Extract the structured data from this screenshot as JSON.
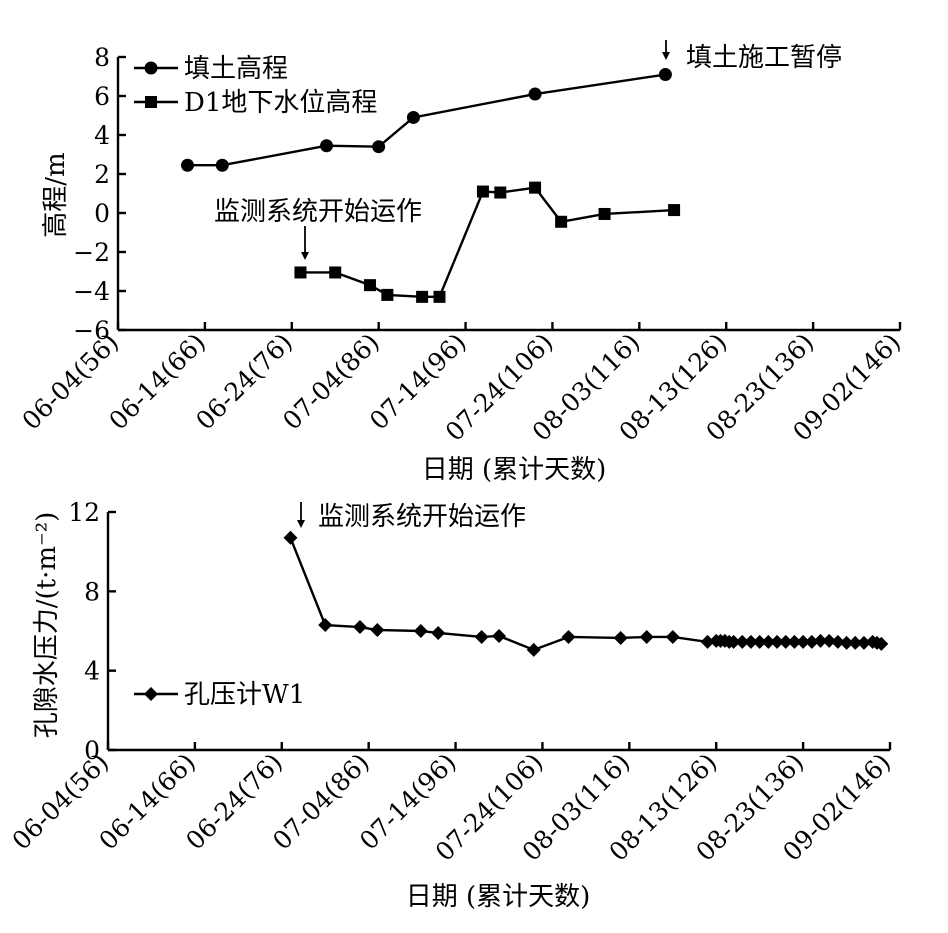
{
  "chart_data": [
    {
      "type": "line",
      "x_tick_labels": [
        "06-04(56)",
        "06-14(66)",
        "06-24(76)",
        "07-04(86)",
        "07-14(96)",
        "07-24(106)",
        "08-03(116)",
        "08-13(126)",
        "08-23(136)",
        "09-02(146)"
      ],
      "x_ticks": [
        56,
        66,
        76,
        86,
        96,
        106,
        116,
        126,
        136,
        146
      ],
      "xlim": [
        56,
        146
      ],
      "xlabel": "日期 (累计天数)",
      "ylabel": "高程/m",
      "ylim": [
        -6,
        8
      ],
      "y_ticks": [
        -6,
        -4,
        -2,
        0,
        2,
        4,
        6,
        8
      ],
      "y_tick_labels": [
        "−6",
        "−4",
        "−2",
        "0",
        "2",
        "4",
        "6",
        "8"
      ],
      "legend_position": "top-left",
      "series": [
        {
          "name": "填土高程",
          "marker": "circle",
          "x": [
            64,
            68,
            80,
            86,
            90,
            104,
            119
          ],
          "y": [
            2.45,
            2.45,
            3.45,
            3.4,
            4.9,
            6.1,
            7.1
          ]
        },
        {
          "name": "D1地下水位高程",
          "marker": "square",
          "x": [
            77,
            81,
            85,
            87,
            91,
            93,
            98,
            100,
            104,
            107,
            112,
            120
          ],
          "y": [
            -3.05,
            -3.05,
            -3.7,
            -4.2,
            -4.3,
            -4.3,
            1.1,
            1.05,
            1.3,
            -0.45,
            -0.05,
            0.15
          ]
        }
      ],
      "annotations": [
        {
          "text": "填土施工暂停",
          "x": 119,
          "arrow": true
        },
        {
          "text": "监测系统开始运作",
          "x": 77,
          "arrow": true
        }
      ]
    },
    {
      "type": "line",
      "x_tick_labels": [
        "06-04(56)",
        "06-14(66)",
        "06-24(76)",
        "07-04(86)",
        "07-14(96)",
        "07-24(106)",
        "08-03(116)",
        "08-13(126)",
        "08-23(136)",
        "09-02(146)"
      ],
      "x_ticks": [
        56,
        66,
        76,
        86,
        96,
        106,
        116,
        126,
        136,
        146
      ],
      "xlim": [
        56,
        146
      ],
      "xlabel": "日期 (累计天数)",
      "ylabel": "孔隙水压力/(t·m⁻²)",
      "ylim": [
        0,
        12
      ],
      "y_ticks": [
        0,
        4,
        8,
        12
      ],
      "y_tick_labels": [
        "0",
        "4",
        "8",
        "12"
      ],
      "legend_position": "center-left",
      "series": [
        {
          "name": "孔压计W1",
          "marker": "diamond",
          "x": [
            77,
            81,
            85,
            87,
            92,
            94,
            99,
            101,
            105,
            109,
            115,
            118,
            121,
            125,
            126,
            126.5,
            127,
            127.5,
            128,
            129,
            130,
            131,
            132,
            133,
            134,
            135,
            136,
            137,
            138,
            139,
            140,
            141,
            142,
            143,
            144,
            144.5,
            145
          ],
          "y": [
            10.7,
            6.3,
            6.2,
            6.05,
            6.0,
            5.9,
            5.7,
            5.75,
            5.05,
            5.7,
            5.65,
            5.7,
            5.7,
            5.45,
            5.5,
            5.5,
            5.5,
            5.45,
            5.45,
            5.45,
            5.45,
            5.45,
            5.45,
            5.45,
            5.45,
            5.45,
            5.45,
            5.45,
            5.5,
            5.5,
            5.45,
            5.4,
            5.4,
            5.4,
            5.45,
            5.4,
            5.35
          ]
        }
      ],
      "annotations": [
        {
          "text": "监测系统开始运作",
          "x": 77,
          "arrow": true
        }
      ]
    }
  ]
}
